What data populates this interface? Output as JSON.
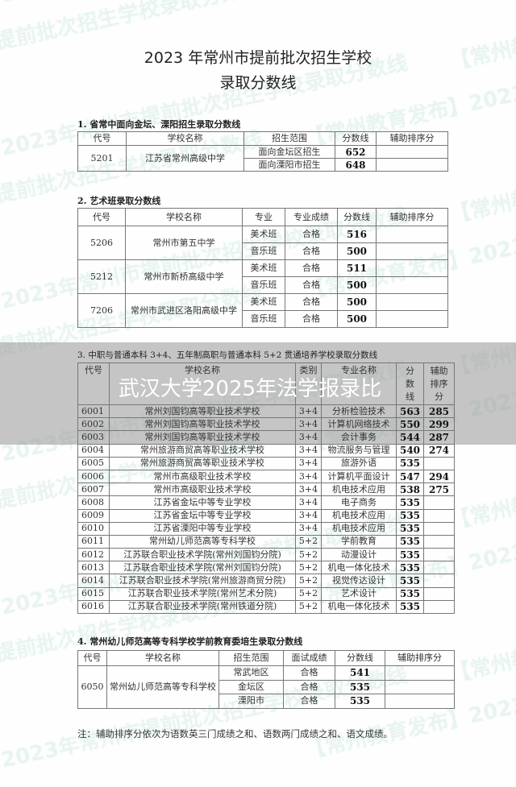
{
  "watermark": "【常州教育发布】2023年常州市提前批次招生学校录取分数线",
  "title": {
    "line1": "2023 年常州市提前批次招生学校",
    "line2": "录取分数线"
  },
  "section1": {
    "heading": "1. 省常中面向金坛、溧阳招生录取分数线",
    "headers": [
      "代号",
      "学校名称",
      "招生范围",
      "分数线",
      "辅助排序分"
    ],
    "schools": [
      {
        "code": "5201",
        "name": "江苏省常州高级中学",
        "rows": [
          {
            "range": "面向金坛区招生",
            "score": "652",
            "aux": ""
          },
          {
            "range": "面向溧阳市招生",
            "score": "648",
            "aux": ""
          }
        ]
      }
    ]
  },
  "section2": {
    "heading": "2. 艺术班录取分数线",
    "headers": [
      "代号",
      "学校名称",
      "专业",
      "专业成绩",
      "分数线",
      "辅助排序分"
    ],
    "schools": [
      {
        "code": "5206",
        "name": "常州市第五中学",
        "rows": [
          {
            "major": "美术班",
            "grade": "合格",
            "score": "516",
            "aux": ""
          },
          {
            "major": "音乐班",
            "grade": "合格",
            "score": "500",
            "aux": ""
          }
        ]
      },
      {
        "code": "5212",
        "name": "常州市新桥高级中学",
        "rows": [
          {
            "major": "美术班",
            "grade": "合格",
            "score": "511",
            "aux": ""
          },
          {
            "major": "音乐班",
            "grade": "合格",
            "score": "500",
            "aux": ""
          }
        ]
      },
      {
        "code": "7206",
        "name": "常州市武进区洛阳高级中学",
        "rows": [
          {
            "major": "美术班",
            "grade": "合格",
            "score": "500",
            "aux": ""
          },
          {
            "major": "音乐班",
            "grade": "合格",
            "score": "500",
            "aux": ""
          }
        ]
      }
    ]
  },
  "section3": {
    "heading": "3. 中职与普通本科 3+4、五年制高职与普通本科 5+2 贯通培养学校录取分数线",
    "headers": [
      "代号",
      "学校名称",
      "类别",
      "专业名称",
      "分数线",
      "辅助排序分"
    ],
    "rows": [
      [
        "6001",
        "常州刘国钧高等职业技术学校",
        "3+4",
        "分析检验技术",
        "563",
        "285"
      ],
      [
        "6002",
        "常州刘国钧高等职业技术学校",
        "3+4",
        "计算机网络技术",
        "550",
        "299"
      ],
      [
        "6003",
        "常州刘国钧高等职业技术学校",
        "3+4",
        "会计事务",
        "544",
        "287"
      ],
      [
        "6004",
        "常州旅游商贸高等职业技术学校",
        "3+4",
        "物流服务与管理",
        "540",
        "274"
      ],
      [
        "6005",
        "常州旅游商贸高等职业技术学校",
        "3+4",
        "旅游外语",
        "535",
        ""
      ],
      [
        "6006",
        "常州市高级职业技术学校",
        "3+4",
        "计算机平面设计",
        "547",
        "294"
      ],
      [
        "6007",
        "常州市高级职业技术学校",
        "3+4",
        "机电技术应用",
        "538",
        "275"
      ],
      [
        "6008",
        "江苏省金坛中等专业学校",
        "3+4",
        "电子商务",
        "535",
        ""
      ],
      [
        "6009",
        "江苏省金坛中等专业学校",
        "3+4",
        "机电技术应用",
        "535",
        ""
      ],
      [
        "6010",
        "江苏省溧阳中等专业学校",
        "3+4",
        "机电技术应用",
        "535",
        ""
      ],
      [
        "6011",
        "常州幼儿师范高等专科学校",
        "5+2",
        "学前教育",
        "535",
        ""
      ],
      [
        "6012",
        "江苏联合职业技术学院(常州刘国钧分院)",
        "5+2",
        "动漫设计",
        "535",
        ""
      ],
      [
        "6013",
        "江苏联合职业技术学院(常州刘国钧分院)",
        "5+2",
        "机电一体化技术",
        "535",
        ""
      ],
      [
        "6014",
        "江苏联合职业技术学院(常州旅游商贸分院)",
        "5+2",
        "视觉传达设计",
        "535",
        ""
      ],
      [
        "6015",
        "江苏联合职业技术学院(常州艺术分院)",
        "5+2",
        "艺术设计",
        "535",
        ""
      ],
      [
        "6016",
        "江苏联合职业技术学院(常州铁道分院)",
        "5+2",
        "机电一体化技术",
        "535",
        ""
      ]
    ]
  },
  "section4": {
    "heading": "4. 常州幼儿师范高等专科学校学前教育委培生录取分数线",
    "headers": [
      "代号",
      "学校名称",
      "招生范围",
      "面试成绩",
      "分数线",
      "辅助排序分"
    ],
    "schools": [
      {
        "code": "6050",
        "name": "常州幼儿师范高等专科学校",
        "rows": [
          {
            "range": "常武地区",
            "grade": "合格",
            "score": "541",
            "aux": ""
          },
          {
            "range": "金坛区",
            "grade": "合格",
            "score": "535",
            "aux": ""
          },
          {
            "range": "溧阳市",
            "grade": "合格",
            "score": "535",
            "aux": ""
          }
        ]
      }
    ]
  },
  "note": "注：辅助排序分依次为语数英三门成绩之和、语数两门成绩之和、语文成绩。",
  "banner": "武汉大学2025年法学报录比"
}
